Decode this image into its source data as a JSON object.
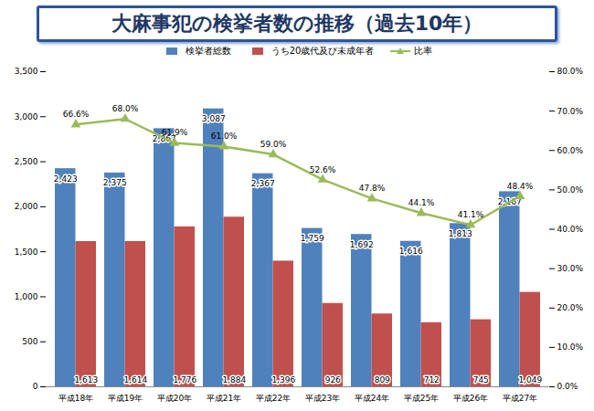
{
  "chart_data": {
    "type": "bar",
    "title": "大麻事犯の検挙者数の推移（過去10年）",
    "categories": [
      "平成18年",
      "平成19年",
      "平成20年",
      "平成21年",
      "平成22年",
      "平成23年",
      "平成24年",
      "平成25年",
      "平成26年",
      "平成27年"
    ],
    "series": [
      {
        "name": "検挙者総数",
        "type": "bar",
        "color": "#4f81bd",
        "values": [
          2423,
          2375,
          2867,
          3087,
          2367,
          1759,
          1692,
          1616,
          1813,
          2167
        ],
        "value_labels": [
          "2,423",
          "2,375",
          "2,867",
          "3,087",
          "2,367",
          "1,759",
          "1,692",
          "1,616",
          "1,813",
          "2,167"
        ]
      },
      {
        "name": "うち20歳代及び未成年者",
        "type": "bar",
        "color": "#c0504d",
        "values": [
          1613,
          1614,
          1776,
          1884,
          1396,
          926,
          809,
          712,
          745,
          1049
        ],
        "value_labels": [
          "1,613",
          "1,614",
          "1,776",
          "1,884",
          "1,396",
          "926",
          "809",
          "712",
          "745",
          "1,049"
        ]
      },
      {
        "name": "比率",
        "type": "line",
        "axis": "y2",
        "color": "#9bbb59",
        "marker": "triangle",
        "values": [
          66.6,
          68.0,
          61.9,
          61.0,
          59.0,
          52.6,
          47.8,
          44.1,
          41.1,
          48.4
        ],
        "value_labels": [
          "66.6%",
          "68.0%",
          "61.9%",
          "61.0%",
          "59.0%",
          "52.6%",
          "47.8%",
          "44.1%",
          "41.1%",
          "48.4%"
        ]
      }
    ],
    "ylim": [
      0,
      3500
    ],
    "yticks": [
      0,
      500,
      {
        "value": 1000,
        "label": "1,000"
      },
      {
        "value": 1500,
        "label": "1,500"
      },
      {
        "value": 2000,
        "label": "2,000"
      },
      {
        "value": 2500,
        "label": "2,500"
      },
      {
        "value": 3000,
        "label": "3,000"
      },
      {
        "value": 3500,
        "label": "3,500"
      }
    ],
    "y2lim": [
      0,
      80
    ],
    "y2ticks": [
      {
        "value": 0,
        "label": "0.0%"
      },
      {
        "value": 10,
        "label": "10.0%"
      },
      {
        "value": 20,
        "label": "20.0%"
      },
      {
        "value": 30,
        "label": "30.0%"
      },
      {
        "value": 40,
        "label": "40.0%"
      },
      {
        "value": 50,
        "label": "50.0%"
      },
      {
        "value": 60,
        "label": "60.0%"
      },
      {
        "value": 70,
        "label": "70.0%"
      },
      {
        "value": 80,
        "label": "80.0%"
      }
    ],
    "data_labels": true,
    "legend": "top",
    "grid": false
  }
}
